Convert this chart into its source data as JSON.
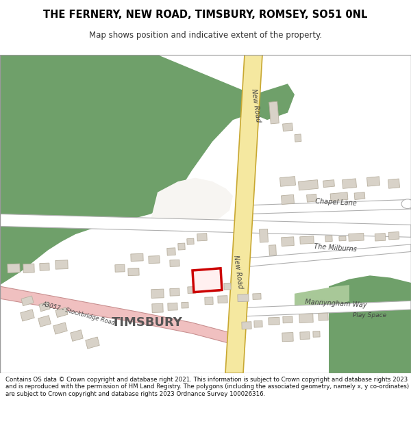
{
  "title_line1": "THE FERNERY, NEW ROAD, TIMSBURY, ROMSEY, SO51 0NL",
  "title_line2": "Map shows position and indicative extent of the property.",
  "footer_text": "Contains OS data © Crown copyright and database right 2021. This information is subject to Crown copyright and database rights 2023 and is reproduced with the permission of HM Land Registry. The polygons (including the associated geometry, namely x, y co-ordinates) are subject to Crown copyright and database rights 2023 Ordnance Survey 100026316.",
  "bg_color": "#ffffff",
  "map_bg": "#f7f5f2",
  "road_yellow_fill": "#f5e8a0",
  "road_yellow_edge": "#c8a832",
  "road_minor_fill": "#ffffff",
  "road_minor_edge": "#b0b0b0",
  "green_dark": "#6fa06a",
  "green_light": "#a8c898",
  "building_fill": "#d8d2c8",
  "building_edge": "#b8b0a0",
  "red_color": "#cc0000",
  "pink_fill": "#f0c0c0",
  "pink_edge": "#c89090",
  "title_color": "#000000",
  "subtitle_color": "#333333",
  "footer_color": "#111111",
  "label_color": "#444444"
}
